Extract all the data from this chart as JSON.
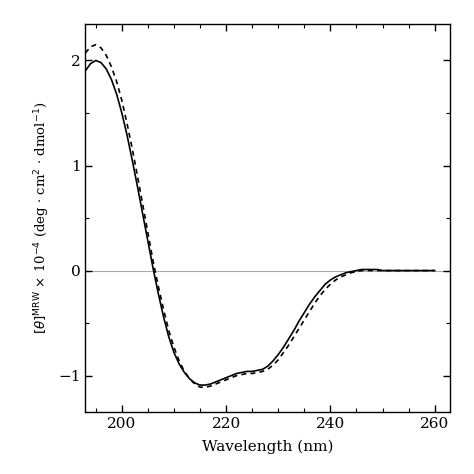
{
  "xlabel": "Wavelength (nm)",
  "xlim": [
    193,
    263
  ],
  "ylim": [
    -1.35,
    2.35
  ],
  "xticks": [
    200,
    220,
    240,
    260
  ],
  "yticks": [
    -1,
    0,
    1,
    2
  ],
  "zero_line_color": "#aaaaaa",
  "solid_color": "#000000",
  "dashed_color": "#000000",
  "background_color": "#ffffff",
  "solid_wavelengths": [
    193,
    194,
    195,
    196,
    197,
    198,
    199,
    200,
    201,
    202,
    203,
    204,
    205,
    206,
    207,
    208,
    209,
    210,
    211,
    212,
    213,
    214,
    215,
    216,
    217,
    218,
    219,
    220,
    221,
    222,
    223,
    224,
    225,
    226,
    227,
    228,
    229,
    230,
    231,
    232,
    233,
    234,
    235,
    236,
    237,
    238,
    239,
    240,
    241,
    242,
    243,
    244,
    245,
    246,
    247,
    248,
    249,
    250,
    251,
    252,
    253,
    254,
    255,
    256,
    257,
    258,
    259,
    260
  ],
  "solid_values": [
    1.9,
    1.97,
    2.0,
    1.98,
    1.92,
    1.82,
    1.68,
    1.5,
    1.29,
    1.05,
    0.8,
    0.54,
    0.28,
    0.02,
    -0.22,
    -0.44,
    -0.63,
    -0.78,
    -0.89,
    -0.97,
    -1.03,
    -1.07,
    -1.09,
    -1.09,
    -1.08,
    -1.06,
    -1.04,
    -1.02,
    -1.0,
    -0.98,
    -0.97,
    -0.96,
    -0.96,
    -0.95,
    -0.94,
    -0.91,
    -0.86,
    -0.8,
    -0.73,
    -0.65,
    -0.57,
    -0.48,
    -0.4,
    -0.32,
    -0.25,
    -0.19,
    -0.13,
    -0.09,
    -0.06,
    -0.04,
    -0.02,
    -0.01,
    0.0,
    0.01,
    0.01,
    0.01,
    0.01,
    0.0,
    0.0,
    0.0,
    0.0,
    0.0,
    0.0,
    0.0,
    0.0,
    0.0,
    0.0,
    0.0
  ],
  "dashed_wavelengths": [
    193,
    194,
    195,
    196,
    197,
    198,
    199,
    200,
    201,
    202,
    203,
    204,
    205,
    206,
    207,
    208,
    209,
    210,
    211,
    212,
    213,
    214,
    215,
    216,
    217,
    218,
    219,
    220,
    221,
    222,
    223,
    224,
    225,
    226,
    227,
    228,
    229,
    230,
    231,
    232,
    233,
    234,
    235,
    236,
    237,
    238,
    239,
    240,
    241,
    242,
    243,
    244,
    245,
    246,
    247,
    248,
    249,
    250,
    251,
    252,
    253,
    254,
    255,
    256,
    257,
    258,
    259,
    260
  ],
  "dashed_values": [
    2.07,
    2.13,
    2.15,
    2.12,
    2.05,
    1.94,
    1.8,
    1.62,
    1.4,
    1.16,
    0.9,
    0.63,
    0.36,
    0.09,
    -0.15,
    -0.37,
    -0.57,
    -0.73,
    -0.86,
    -0.96,
    -1.03,
    -1.08,
    -1.11,
    -1.11,
    -1.1,
    -1.08,
    -1.06,
    -1.04,
    -1.02,
    -1.0,
    -0.99,
    -0.98,
    -0.98,
    -0.97,
    -0.96,
    -0.94,
    -0.9,
    -0.85,
    -0.78,
    -0.71,
    -0.63,
    -0.55,
    -0.47,
    -0.39,
    -0.31,
    -0.24,
    -0.18,
    -0.13,
    -0.09,
    -0.06,
    -0.04,
    -0.02,
    -0.01,
    0.0,
    0.0,
    0.0,
    0.0,
    0.0,
    0.0,
    0.0,
    0.0,
    0.0,
    0.0,
    0.0,
    0.0,
    0.0,
    0.0,
    0.0
  ]
}
